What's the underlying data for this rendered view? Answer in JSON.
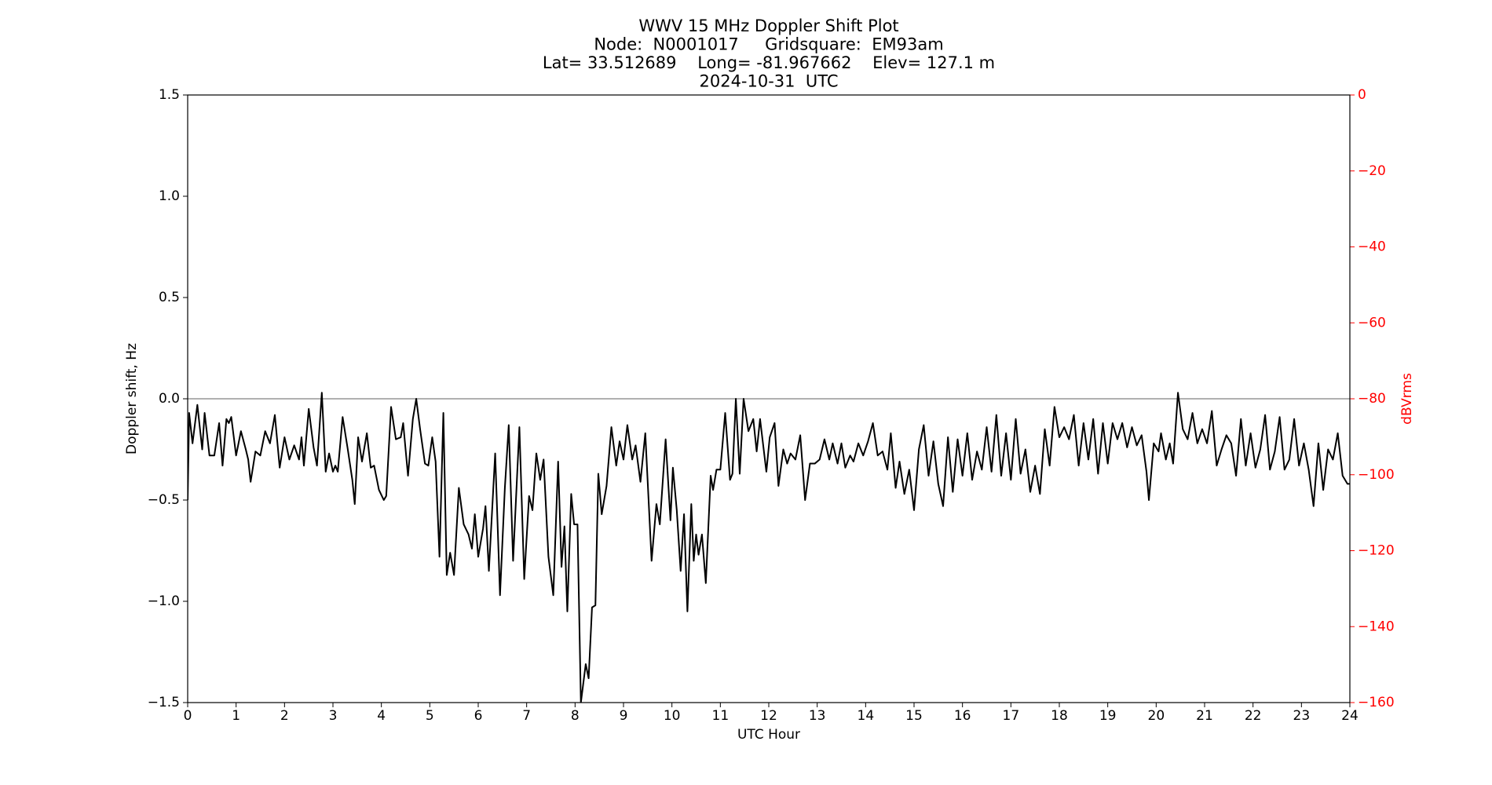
{
  "chart_data": {
    "type": "line",
    "title": [
      "WWV 15 MHz Doppler Shift Plot",
      "Node:  N0001017     Gridsquare:  EM93am",
      "Lat= 33.512689    Long= -81.967662    Elev= 127.1 m",
      "2024-10-31  UTC"
    ],
    "xlabel": "UTC Hour",
    "ylabel": "Doppler shift, Hz",
    "y2label": "dBVrms",
    "y2color": "#ff0000",
    "color": "#000000",
    "reference_line": 0,
    "reference_color": "#808080",
    "xlim": [
      0,
      24
    ],
    "xticks": [
      0,
      1,
      2,
      3,
      4,
      5,
      6,
      7,
      8,
      9,
      10,
      11,
      12,
      13,
      14,
      15,
      16,
      17,
      18,
      19,
      20,
      21,
      22,
      23,
      24
    ],
    "ylim": [
      -1.5,
      1.5
    ],
    "yticks": [
      {
        "value": -1.5,
        "label": "−1.5"
      },
      {
        "value": -1.0,
        "label": "−1.0"
      },
      {
        "value": -0.5,
        "label": "−0.5"
      },
      {
        "value": 0,
        "label": "0.0"
      },
      0.5,
      {
        "value": 1.0,
        "label": "1.0"
      },
      1.5
    ],
    "y2lim": [
      -160,
      0
    ],
    "y2ticks": [
      0,
      {
        "value": -20,
        "label": "−20"
      },
      {
        "value": -40,
        "label": "−40"
      },
      {
        "value": -60,
        "label": "−60"
      },
      {
        "value": -80,
        "label": "−80"
      },
      {
        "value": -100,
        "label": "−100"
      },
      {
        "value": -120,
        "label": "−120"
      },
      {
        "value": -140,
        "label": "−140"
      },
      {
        "value": -160,
        "label": "−160"
      }
    ],
    "x": [
      0,
      0.03,
      0.1,
      0.2,
      0.3,
      0.35,
      0.45,
      0.55,
      0.65,
      0.72,
      0.8,
      0.85,
      0.9,
      1.0,
      1.1,
      1.2,
      1.25,
      1.3,
      1.4,
      1.5,
      1.6,
      1.7,
      1.8,
      1.9,
      2.0,
      2.1,
      2.2,
      2.3,
      2.35,
      2.4,
      2.5,
      2.6,
      2.67,
      2.77,
      2.85,
      2.92,
      3.0,
      3.05,
      3.1,
      3.2,
      3.3,
      3.4,
      3.45,
      3.52,
      3.6,
      3.7,
      3.78,
      3.85,
      3.95,
      4.05,
      4.1,
      4.2,
      4.3,
      4.4,
      4.45,
      4.55,
      4.65,
      4.72,
      4.8,
      4.9,
      4.97,
      5.05,
      5.12,
      5.2,
      5.28,
      5.35,
      5.42,
      5.5,
      5.6,
      5.7,
      5.8,
      5.87,
      5.93,
      6.0,
      6.1,
      6.15,
      6.22,
      6.35,
      6.45,
      6.55,
      6.63,
      6.72,
      6.85,
      6.95,
      7.05,
      7.12,
      7.2,
      7.28,
      7.35,
      7.45,
      7.55,
      7.65,
      7.72,
      7.78,
      7.84,
      7.92,
      7.98,
      8.05,
      8.12,
      8.22,
      8.28,
      8.35,
      8.42,
      8.48,
      8.55,
      8.65,
      8.75,
      8.85,
      8.92,
      9.0,
      9.08,
      9.18,
      9.25,
      9.35,
      9.45,
      9.58,
      9.68,
      9.75,
      9.87,
      9.97,
      10.02,
      10.1,
      10.18,
      10.25,
      10.32,
      10.4,
      10.45,
      10.5,
      10.55,
      10.62,
      10.7,
      10.8,
      10.85,
      10.92,
      11.0,
      11.1,
      11.2,
      11.25,
      11.32,
      11.4,
      11.48,
      11.58,
      11.68,
      11.75,
      11.82,
      11.95,
      12.02,
      12.12,
      12.2,
      12.3,
      12.38,
      12.45,
      12.55,
      12.65,
      12.75,
      12.85,
      12.95,
      13.05,
      13.15,
      13.25,
      13.32,
      13.42,
      13.5,
      13.58,
      13.68,
      13.75,
      13.85,
      13.95,
      14.05,
      14.15,
      14.25,
      14.35,
      14.45,
      14.52,
      14.62,
      14.7,
      14.8,
      14.9,
      15.0,
      15.1,
      15.2,
      15.3,
      15.4,
      15.5,
      15.6,
      15.7,
      15.8,
      15.9,
      16.0,
      16.1,
      16.2,
      16.3,
      16.4,
      16.5,
      16.6,
      16.7,
      16.8,
      16.9,
      17.0,
      17.1,
      17.2,
      17.3,
      17.4,
      17.5,
      17.6,
      17.7,
      17.8,
      17.9,
      18.0,
      18.1,
      18.2,
      18.3,
      18.4,
      18.5,
      18.6,
      18.7,
      18.8,
      18.9,
      19.0,
      19.1,
      19.2,
      19.3,
      19.4,
      19.5,
      19.6,
      19.7,
      19.8,
      19.85,
      19.95,
      20.05,
      20.1,
      20.2,
      20.28,
      20.35,
      20.45,
      20.55,
      20.65,
      20.75,
      20.85,
      20.95,
      21.05,
      21.15,
      21.25,
      21.35,
      21.45,
      21.55,
      21.65,
      21.75,
      21.85,
      21.95,
      22.05,
      22.15,
      22.25,
      22.35,
      22.45,
      22.55,
      22.65,
      22.75,
      22.85,
      22.95,
      23.05,
      23.15,
      23.25,
      23.35,
      23.45,
      23.55,
      23.65,
      23.75,
      23.85,
      23.95,
      24.0
    ],
    "values": [
      -0.5,
      -0.07,
      -0.22,
      -0.03,
      -0.25,
      -0.07,
      -0.28,
      -0.28,
      -0.12,
      -0.33,
      -0.1,
      -0.12,
      -0.09,
      -0.28,
      -0.16,
      -0.25,
      -0.3,
      -0.41,
      -0.26,
      -0.28,
      -0.16,
      -0.22,
      -0.08,
      -0.34,
      -0.19,
      -0.3,
      -0.23,
      -0.3,
      -0.19,
      -0.33,
      -0.05,
      -0.24,
      -0.33,
      0.03,
      -0.36,
      -0.27,
      -0.36,
      -0.33,
      -0.36,
      -0.09,
      -0.24,
      -0.4,
      -0.52,
      -0.19,
      -0.31,
      -0.17,
      -0.34,
      -0.33,
      -0.45,
      -0.5,
      -0.48,
      -0.04,
      -0.2,
      -0.19,
      -0.12,
      -0.38,
      -0.1,
      0.0,
      -0.15,
      -0.32,
      -0.33,
      -0.19,
      -0.31,
      -0.78,
      -0.07,
      -0.87,
      -0.76,
      -0.87,
      -0.44,
      -0.62,
      -0.67,
      -0.74,
      -0.57,
      -0.78,
      -0.64,
      -0.53,
      -0.85,
      -0.27,
      -0.97,
      -0.44,
      -0.13,
      -0.8,
      -0.14,
      -0.89,
      -0.48,
      -0.55,
      -0.27,
      -0.4,
      -0.3,
      -0.78,
      -0.97,
      -0.31,
      -0.83,
      -0.63,
      -1.05,
      -0.47,
      -0.62,
      -0.62,
      -1.5,
      -1.31,
      -1.38,
      -1.03,
      -1.02,
      -0.37,
      -0.57,
      -0.43,
      -0.14,
      -0.33,
      -0.21,
      -0.3,
      -0.13,
      -0.3,
      -0.23,
      -0.41,
      -0.17,
      -0.8,
      -0.52,
      -0.62,
      -0.2,
      -0.6,
      -0.34,
      -0.55,
      -0.85,
      -0.57,
      -1.05,
      -0.52,
      -0.8,
      -0.67,
      -0.77,
      -0.67,
      -0.91,
      -0.38,
      -0.45,
      -0.35,
      -0.35,
      -0.07,
      -0.4,
      -0.37,
      0.0,
      -0.37,
      0.0,
      -0.16,
      -0.1,
      -0.26,
      -0.1,
      -0.36,
      -0.19,
      -0.12,
      -0.43,
      -0.25,
      -0.32,
      -0.27,
      -0.3,
      -0.18,
      -0.5,
      -0.32,
      -0.32,
      -0.3,
      -0.2,
      -0.3,
      -0.22,
      -0.32,
      -0.22,
      -0.34,
      -0.28,
      -0.31,
      -0.22,
      -0.28,
      -0.21,
      -0.12,
      -0.28,
      -0.26,
      -0.35,
      -0.17,
      -0.44,
      -0.31,
      -0.47,
      -0.35,
      -0.55,
      -0.25,
      -0.13,
      -0.38,
      -0.21,
      -0.42,
      -0.53,
      -0.19,
      -0.46,
      -0.2,
      -0.38,
      -0.17,
      -0.4,
      -0.26,
      -0.35,
      -0.14,
      -0.36,
      -0.08,
      -0.38,
      -0.17,
      -0.4,
      -0.1,
      -0.37,
      -0.25,
      -0.46,
      -0.33,
      -0.47,
      -0.15,
      -0.33,
      -0.04,
      -0.19,
      -0.14,
      -0.2,
      -0.08,
      -0.33,
      -0.12,
      -0.3,
      -0.1,
      -0.37,
      -0.12,
      -0.32,
      -0.12,
      -0.2,
      -0.12,
      -0.24,
      -0.14,
      -0.23,
      -0.18,
      -0.36,
      -0.5,
      -0.22,
      -0.26,
      -0.17,
      -0.3,
      -0.22,
      -0.32,
      0.03,
      -0.15,
      -0.2,
      -0.07,
      -0.22,
      -0.15,
      -0.22,
      -0.06,
      -0.33,
      -0.25,
      -0.18,
      -0.22,
      -0.38,
      -0.1,
      -0.33,
      -0.17,
      -0.34,
      -0.25,
      -0.08,
      -0.35,
      -0.26,
      -0.09,
      -0.35,
      -0.3,
      -0.1,
      -0.33,
      -0.22,
      -0.35,
      -0.53,
      -0.22,
      -0.45,
      -0.25,
      -0.3,
      -0.17,
      -0.38,
      -0.42,
      -0.42
    ]
  }
}
